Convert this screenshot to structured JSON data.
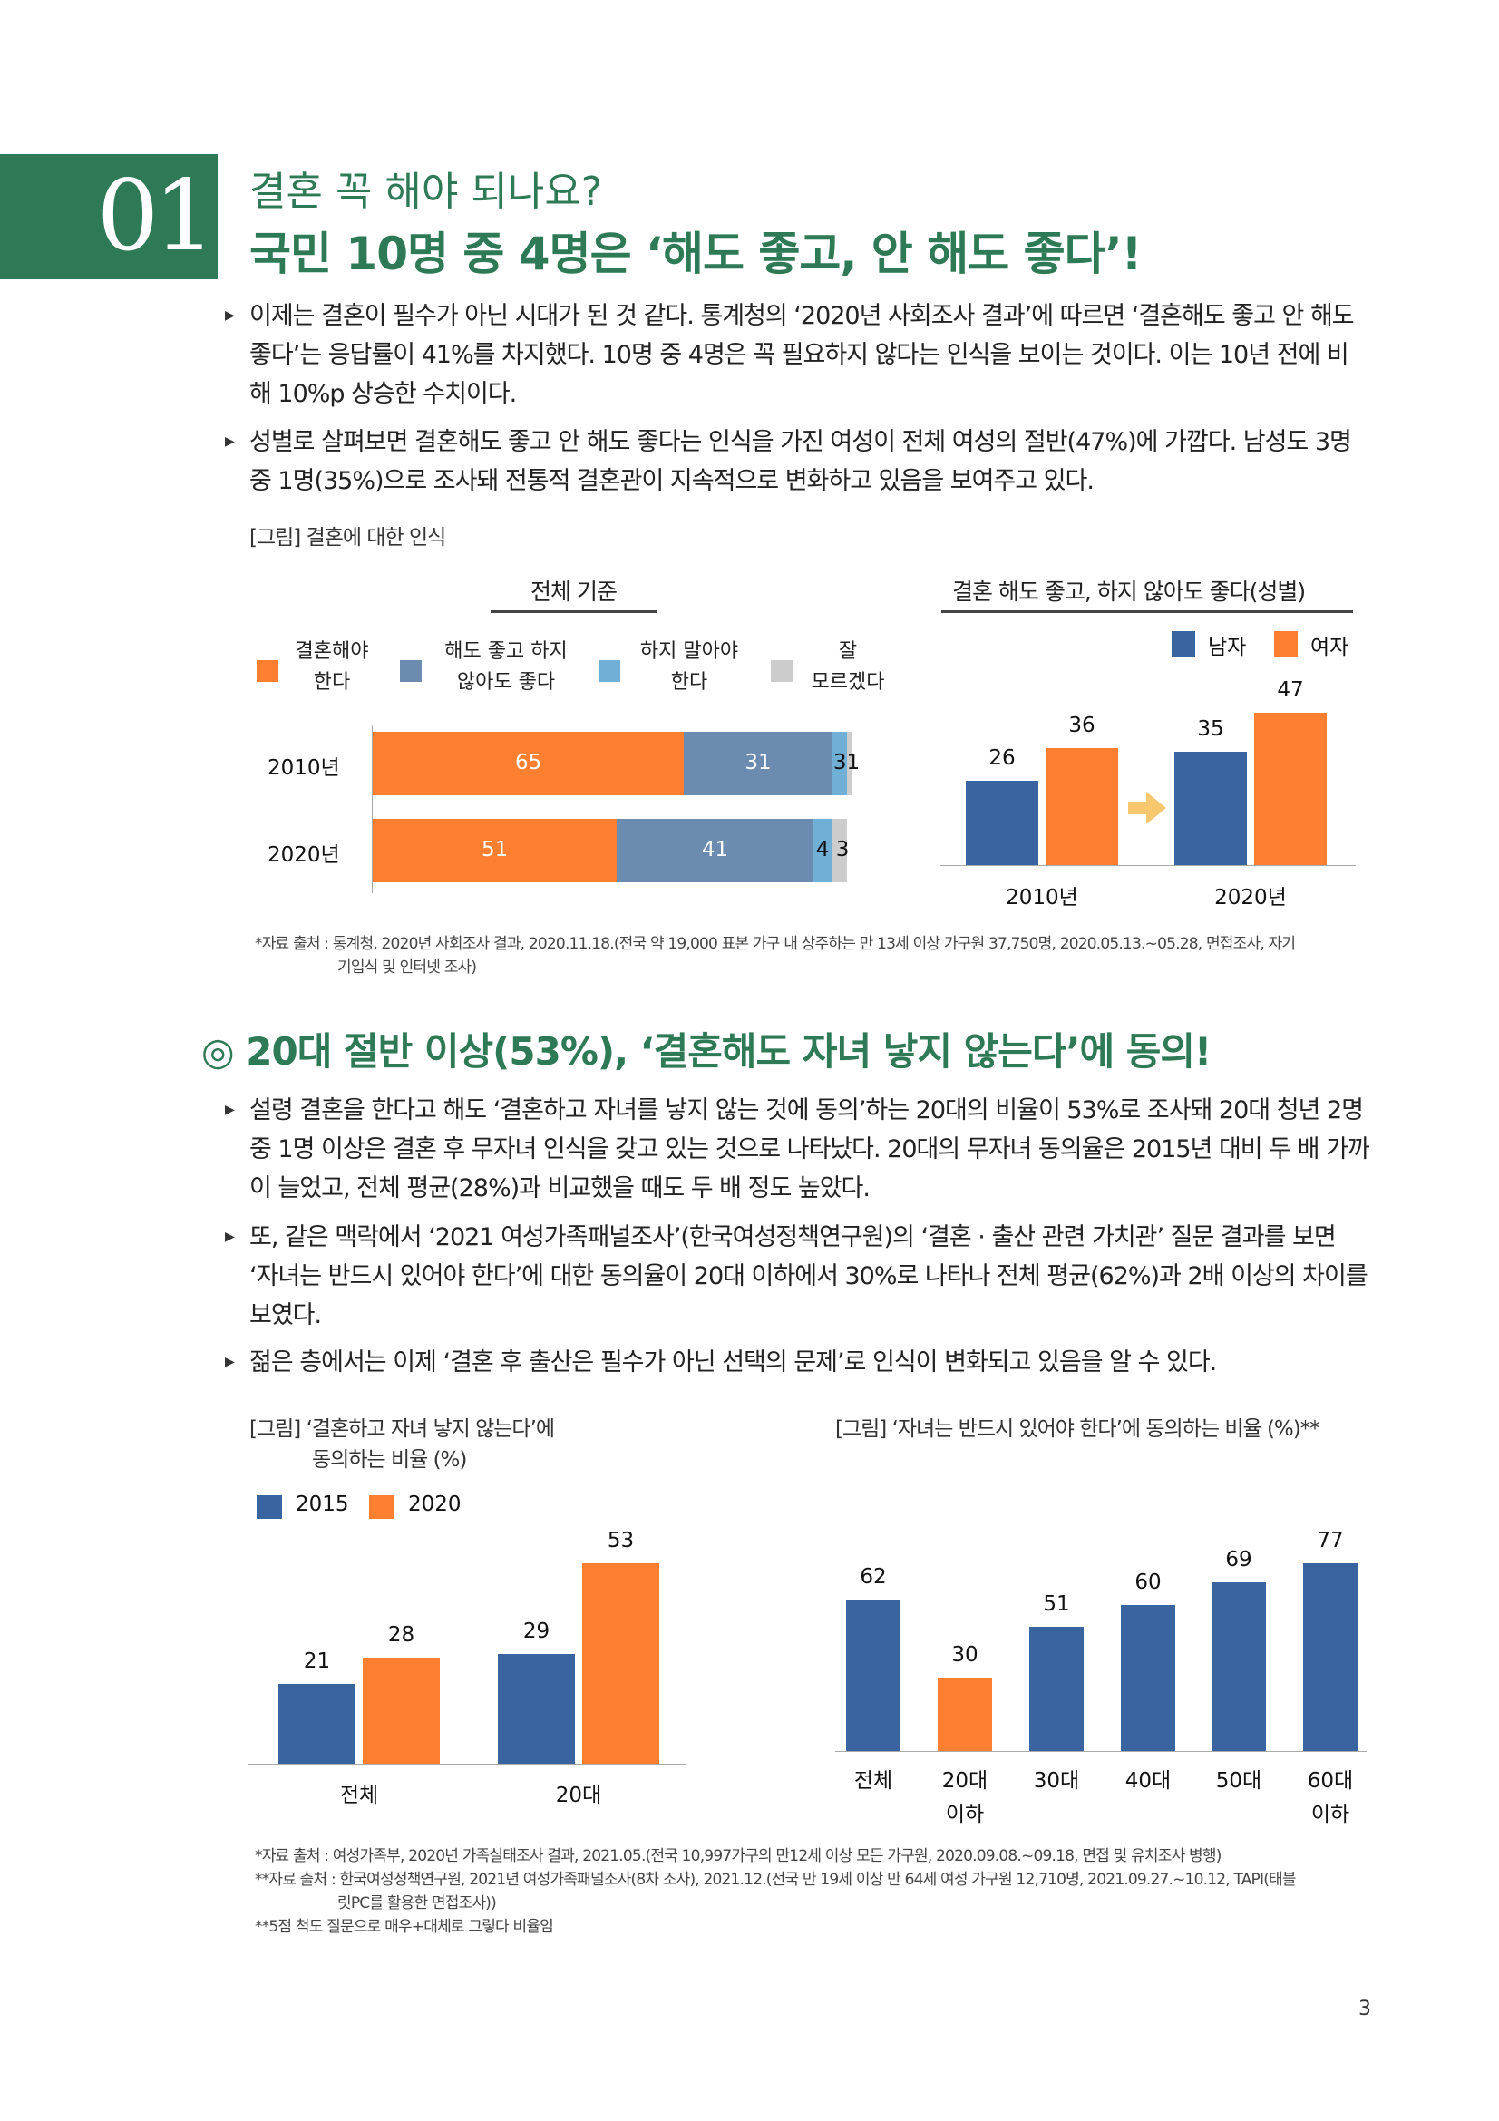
{
  "section_number": "01",
  "title_line1": "결혼 꼭 해야 되나요?",
  "title_line2": "국민 10명 중 4명은 ‘해도 좋고, 안 해도 좋다’!",
  "paragraphs1": [
    "이제는 결혼이 필수가 아닌 시대가 된 것 같다. 통계청의 ‘2020년 사회조사 결과’에 따르면 ‘결혼해도 좋고 안 해도 좋다’는 응답률이 41%를 차지했다. 10명 중 4명은 꼭 필요하지 않다는 인식을 보이는 것이다. 이는 10년 전에 비해 10%p 상승한 수치이다.",
    "성별로 살펴보면 결혼해도 좋고 안 해도 좋다는 인식을 가진 여성이 전체 여성의 절반(47%)에 가깝다. 남성도 3명 중 1명(35%)으로 조사돼 전통적 결혼관이 지속적으로 변화하고 있음을 보여주고 있다."
  ],
  "figure1_caption": "[그림] 결혼에 대한 인식",
  "source1": [
    "*자료 출처 : 통계청, 2020년 사회조사 결과, 2020.11.18.(전국 약 19,000 표본 가구 내 상주하는 만 13세 이상 가구원 37,750명, 2020.05.13.~05.28, 면접조사, 자기",
    "기입식 및 인터넷 조사)"
  ],
  "section2_icon": "◎",
  "section2_heading": "20대 절반 이상(53%), ‘결혼해도 자녀 낳지 않는다’에 동의!",
  "paragraphs2": [
    "설령 결혼을 한다고 해도 ‘결혼하고 자녀를 낳지 않는 것에 동의’하는 20대의 비율이 53%로 조사돼 20대 청년 2명 중 1명 이상은 결혼 후 무자녀 인식을 갖고 있는 것으로 나타났다. 20대의 무자녀 동의율은 2015년 대비 두 배 가까이 늘었고, 전체 평균(28%)과 비교했을 때도 두 배 정도 높았다.",
    "또, 같은 맥락에서 ‘2021 여성가족패널조사’(한국여성정책연구원)의 ‘결혼 · 출산 관련 가치관’ 질문 결과를 보면 ‘자녀는 반드시 있어야 한다’에 대한 동의율이 20대 이하에서 30%로 나타나 전체 평균(62%)과 2배 이상의 차이를 보였다.",
    "젊은 층에서는 이제 ‘결혼 후 출산은 필수가 아닌 선택의 문제’로 인식이 변화되고 있음을 알 수 있다."
  ],
  "figure2_caption": [
    "[그림] ‘결혼하고 자녀 낳지 않는다’에",
    "동의하는 비율 (%)"
  ],
  "figure3_caption": "[그림] ‘자녀는 반드시 있어야 한다’에 동의하는 비율 (%)**",
  "source2": [
    "*자료 출처 : 여성가족부, 2020년 가족실태조사 결과, 2021.05.(전국 10,997가구의 만12세 이상 모든 가구원, 2020.09.08.~09.18, 면접 및 유치조사 병행)",
    "**자료 출처 : 한국여성정책연구원, 2021년 여성가족패널조사(8차 조사), 2021.12.(전국 만 19세 이상 만 64세 여성 가구원 12,710명, 2021.09.27.~10.12, TAPI(태블",
    "릿PC를 활용한 면접조사))",
    "**5점 척도 질문으로 매우+대체로 그렇다 비율임"
  ],
  "page_number": "3",
  "colors": {
    "green": "#2e7a56",
    "orange": "#fe7f2f",
    "blue": "#3a64a0",
    "grayblue": "#6b8bb0",
    "lightblue": "#70afd6",
    "gray": "#cccccc",
    "arrow": "#f9c86e"
  },
  "chart_data": [
    {
      "type": "bar",
      "orientation": "horizontal-stacked",
      "title": "전체 기준",
      "categories": [
        "2010년",
        "2020년"
      ],
      "series": [
        {
          "name": "결혼해야 한다",
          "legend_lines": [
            "결혼해야",
            "한다"
          ],
          "values": [
            65,
            51
          ],
          "color": "#fe7f2f"
        },
        {
          "name": "해도 좋고 하지 않아도 좋다",
          "legend_lines": [
            "해도 좋고 하지",
            "않아도 좋다"
          ],
          "values": [
            31,
            41
          ],
          "color": "#6b8bb0"
        },
        {
          "name": "하지 말아야 한다",
          "legend_lines": [
            "하지 말아야",
            "한다"
          ],
          "values": [
            3,
            4
          ],
          "color": "#70afd6"
        },
        {
          "name": "잘 모르겠다",
          "legend_lines": [
            "잘",
            "모르겠다"
          ],
          "values": [
            1,
            3
          ],
          "color": "#cccccc"
        }
      ],
      "xlim": [
        0,
        100
      ]
    },
    {
      "type": "bar",
      "title": "결혼 해도 좋고, 하지 않아도 좋다(성별)",
      "categories": [
        "2010년",
        "2020년"
      ],
      "series": [
        {
          "name": "남자",
          "values": [
            26,
            35
          ],
          "color": "#3a64a0"
        },
        {
          "name": "여자",
          "values": [
            36,
            47
          ],
          "color": "#fe7f2f"
        }
      ],
      "ylim": [
        0,
        50
      ],
      "legend": "top-right"
    },
    {
      "type": "bar",
      "title": "‘결혼하고 자녀 낳지 않는다’에 동의하는 비율 (%)",
      "categories": [
        "전체",
        "20대"
      ],
      "series": [
        {
          "name": "2015",
          "values": [
            21,
            29
          ],
          "color": "#3a64a0"
        },
        {
          "name": "2020",
          "values": [
            28,
            53
          ],
          "color": "#fe7f2f"
        }
      ],
      "ylim": [
        0,
        55
      ],
      "legend": "top-left"
    },
    {
      "type": "bar",
      "title": "‘자녀는 반드시 있어야 한다’에 동의하는 비율 (%)**",
      "categories": [
        [
          "전체"
        ],
        [
          "20대",
          "이하"
        ],
        [
          "30대"
        ],
        [
          "40대"
        ],
        [
          "50대"
        ],
        [
          "60대",
          "이하"
        ]
      ],
      "values": [
        62,
        30,
        51,
        60,
        69,
        77
      ],
      "colors": [
        "#3a64a0",
        "#fe7f2f",
        "#3a64a0",
        "#3a64a0",
        "#3a64a0",
        "#3a64a0"
      ],
      "ylim": [
        0,
        80
      ]
    }
  ]
}
